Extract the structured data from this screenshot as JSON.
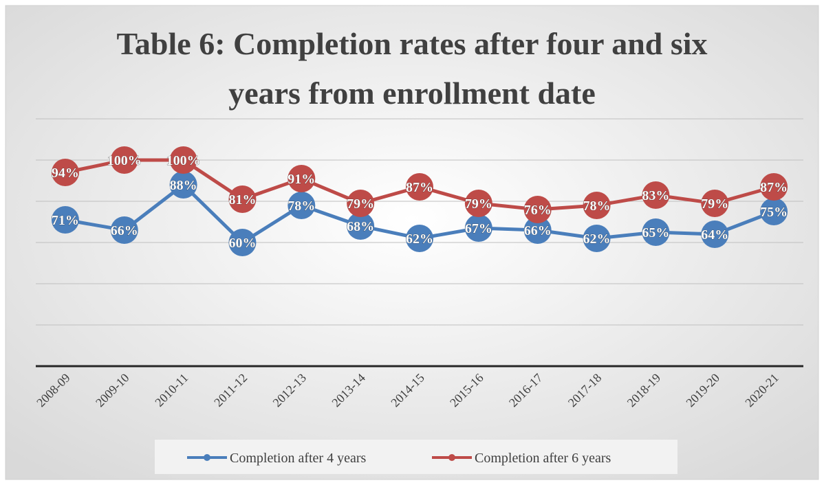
{
  "chart_data": {
    "type": "line",
    "title": "Table 6: Completion rates after four and six years from enrollment date",
    "categories": [
      "2008-09",
      "2009-10",
      "2010-11",
      "2011-12",
      "2012-13",
      "2013-14",
      "2014-15",
      "2015-16",
      "2016-17",
      "2017-18",
      "2018-19",
      "2019-20",
      "2020-21"
    ],
    "series": [
      {
        "name": "Completion after 4 years",
        "color": "#4a7ebb",
        "values": [
          71,
          66,
          88,
          60,
          78,
          68,
          62,
          67,
          66,
          62,
          65,
          64,
          75
        ],
        "value_labels": [
          "71%",
          "66%",
          "88%",
          "60%",
          "78%",
          "68%",
          "62%",
          "67%",
          "66%",
          "62%",
          "65%",
          "64%",
          "75%"
        ]
      },
      {
        "name": "Completion after 6 years",
        "color": "#be4b48",
        "values": [
          94,
          100,
          100,
          81,
          91,
          79,
          87,
          79,
          76,
          78,
          83,
          79,
          87
        ],
        "value_labels": [
          "94%",
          "100%",
          "100%",
          "81%",
          "91%",
          "79%",
          "87%",
          "79%",
          "76%",
          "78%",
          "83%",
          "79%",
          "87%"
        ]
      }
    ],
    "ylim": [
      0,
      120
    ],
    "yticks": [
      0,
      20,
      40,
      60,
      80,
      100,
      120
    ],
    "grid": true,
    "legend": "bottom"
  }
}
